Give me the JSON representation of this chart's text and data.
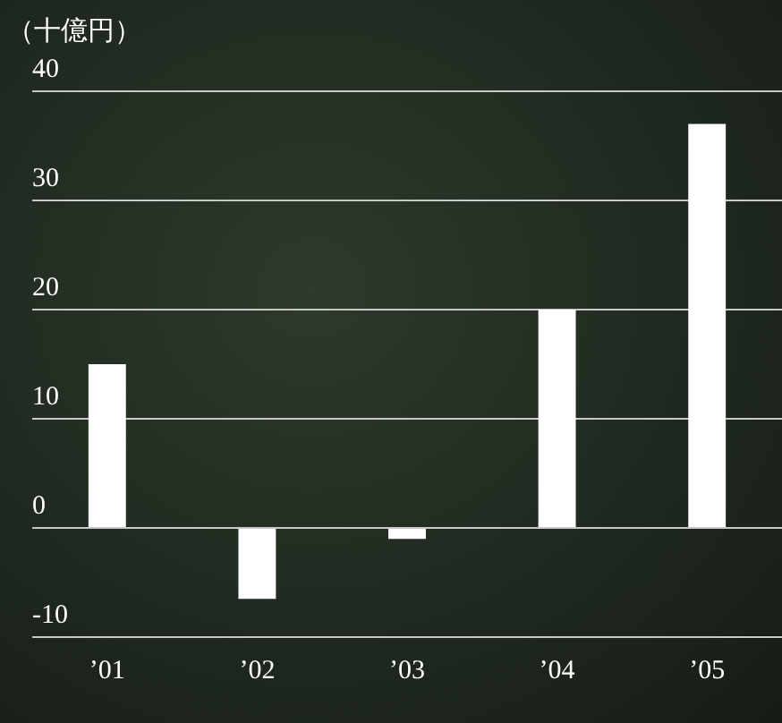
{
  "chart_data": {
    "type": "bar",
    "ylabel": "（十億円）",
    "categories": [
      "’01",
      "’02",
      "’03",
      "’04",
      "’05"
    ],
    "values": [
      15,
      -6.5,
      -1,
      20,
      37
    ],
    "color": "#ffffff",
    "ylim": [
      -10,
      40
    ],
    "yticks": [
      -10,
      0,
      10,
      20,
      30,
      40
    ],
    "grid": "y",
    "legend": false
  }
}
